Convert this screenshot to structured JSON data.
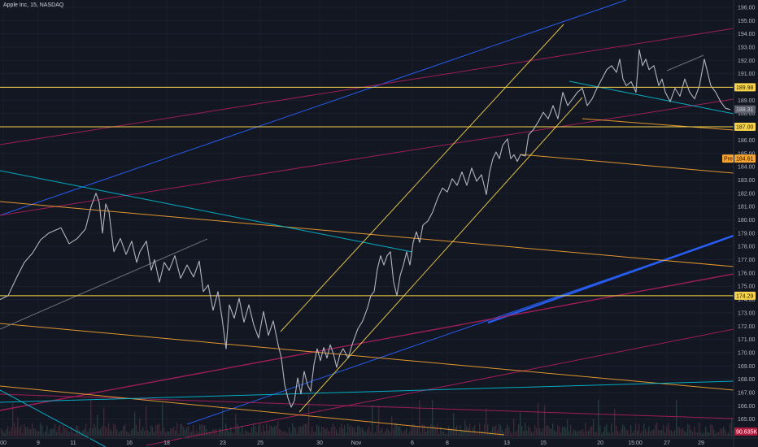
{
  "header": {
    "title": "Apple Inc, 15, NASDAQ"
  },
  "chart_data": {
    "type": "line",
    "title": "Apple Inc, 15, NASDAQ",
    "xlabel": "",
    "ylabel": "",
    "ylim": [
      163.7,
      196.3
    ],
    "y_ticks": [
      164,
      165,
      166,
      167,
      168,
      169,
      170,
      171,
      172,
      173,
      174,
      175,
      176,
      177,
      178,
      179,
      180,
      181,
      182,
      183,
      184,
      185,
      186,
      187,
      188,
      189,
      190,
      191,
      192,
      193,
      194,
      195,
      196
    ],
    "x_ticks": [
      "00",
      "9",
      "11",
      "16",
      "18",
      "23",
      "25",
      "30",
      "Nov",
      "6",
      "8",
      "13",
      "15",
      "20",
      "15:00",
      "27",
      "29"
    ],
    "price_tags": [
      {
        "label": "189.98",
        "value": 189.98,
        "color": "#f7d44c"
      },
      {
        "label": "187.00",
        "value": 187.0,
        "color": "#f7d44c"
      },
      {
        "label": "184.61",
        "value": 184.61,
        "color": "#f7a330",
        "prefix": "Pre"
      },
      {
        "label": "174.29",
        "value": 174.29,
        "color": "#f7d44c"
      },
      {
        "label": "188.31",
        "value": 188.31,
        "color": "#5d606b"
      }
    ],
    "volume_tag": "90.635K",
    "series": [
      {
        "values": [
          [
            0,
            174.0
          ],
          [
            10,
            174.3
          ],
          [
            20,
            175.6
          ],
          [
            30,
            176.8
          ],
          [
            40,
            177.5
          ],
          [
            50,
            178.5
          ],
          [
            60,
            179.0
          ],
          [
            75,
            179.4
          ],
          [
            85,
            178.2
          ],
          [
            95,
            178.6
          ],
          [
            105,
            179.3
          ],
          [
            112,
            181.0
          ],
          [
            118,
            182.0
          ],
          [
            122,
            181.3
          ],
          [
            126,
            179.0
          ],
          [
            130,
            181.2
          ],
          [
            134,
            180.6
          ],
          [
            140,
            177.6
          ],
          [
            148,
            178.6
          ],
          [
            155,
            177.4
          ],
          [
            162,
            178.4
          ],
          [
            168,
            176.8
          ],
          [
            172,
            177.6
          ],
          [
            180,
            178.4
          ],
          [
            186,
            176.2
          ],
          [
            190,
            177.0
          ],
          [
            196,
            175.3
          ],
          [
            202,
            176.8
          ],
          [
            208,
            176.2
          ],
          [
            215,
            177.3
          ],
          [
            222,
            175.6
          ],
          [
            230,
            176.6
          ],
          [
            238,
            175.7
          ],
          [
            245,
            176.9
          ],
          [
            250,
            174.6
          ],
          [
            256,
            175.1
          ],
          [
            262,
            173.2
          ],
          [
            268,
            174.6
          ],
          [
            273,
            172.6
          ],
          [
            278,
            170.3
          ],
          [
            282,
            173.6
          ],
          [
            288,
            172.6
          ],
          [
            294,
            174.1
          ],
          [
            300,
            172.3
          ],
          [
            306,
            173.6
          ],
          [
            312,
            172.1
          ],
          [
            318,
            171.1
          ],
          [
            324,
            173.1
          ],
          [
            330,
            171.3
          ],
          [
            336,
            172.4
          ],
          [
            342,
            170.6
          ],
          [
            346,
            169.6
          ],
          [
            350,
            167.6
          ],
          [
            354,
            166.6
          ],
          [
            358,
            165.9
          ],
          [
            362,
            166.4
          ],
          [
            366,
            168.1
          ],
          [
            370,
            166.9
          ],
          [
            374,
            168.6
          ],
          [
            378,
            167.6
          ],
          [
            382,
            167.1
          ],
          [
            386,
            169.1
          ],
          [
            390,
            170.3
          ],
          [
            394,
            169.4
          ],
          [
            398,
            170.4
          ],
          [
            402,
            169.6
          ],
          [
            406,
            170.6
          ],
          [
            410,
            169.9
          ],
          [
            414,
            168.9
          ],
          [
            418,
            169.9
          ],
          [
            422,
            170.3
          ],
          [
            428,
            169.6
          ],
          [
            434,
            170.8
          ],
          [
            440,
            171.8
          ],
          [
            446,
            172.4
          ],
          [
            452,
            173.4
          ],
          [
            456,
            174.3
          ],
          [
            460,
            174.6
          ],
          [
            464,
            176.3
          ],
          [
            468,
            177.3
          ],
          [
            472,
            176.6
          ],
          [
            476,
            177.3
          ],
          [
            480,
            177.6
          ],
          [
            484,
            175.3
          ],
          [
            488,
            174.3
          ],
          [
            492,
            175.8
          ],
          [
            496,
            176.6
          ],
          [
            500,
            177.6
          ],
          [
            504,
            176.6
          ],
          [
            508,
            178.3
          ],
          [
            512,
            179.1
          ],
          [
            516,
            178.3
          ],
          [
            520,
            179.6
          ],
          [
            526,
            179.9
          ],
          [
            532,
            180.6
          ],
          [
            538,
            181.6
          ],
          [
            544,
            182.4
          ],
          [
            550,
            182.1
          ],
          [
            556,
            183.1
          ],
          [
            562,
            182.6
          ],
          [
            568,
            183.6
          ],
          [
            574,
            182.6
          ],
          [
            580,
            183.9
          ],
          [
            586,
            182.9
          ],
          [
            592,
            183.4
          ],
          [
            598,
            181.9
          ],
          [
            602,
            183.6
          ],
          [
            606,
            184.6
          ],
          [
            610,
            185.1
          ],
          [
            614,
            184.6
          ],
          [
            618,
            185.6
          ],
          [
            624,
            186.1
          ],
          [
            628,
            184.6
          ],
          [
            632,
            184.9
          ],
          [
            636,
            184.4
          ],
          [
            640,
            184.9
          ],
          [
            646,
            184.8
          ],
          [
            650,
            186.4
          ],
          [
            656,
            186.8
          ],
          [
            662,
            187.4
          ],
          [
            668,
            188.1
          ],
          [
            674,
            187.6
          ],
          [
            680,
            188.6
          ],
          [
            686,
            187.6
          ],
          [
            692,
            189.6
          ],
          [
            698,
            188.6
          ],
          [
            704,
            189.1
          ],
          [
            710,
            189.6
          ],
          [
            716,
            189.9
          ],
          [
            722,
            188.6
          ],
          [
            728,
            189.1
          ],
          [
            734,
            189.9
          ],
          [
            740,
            190.6
          ],
          [
            746,
            191.3
          ],
          [
            752,
            191.6
          ],
          [
            758,
            191.1
          ],
          [
            762,
            192.1
          ],
          [
            766,
            190.6
          ],
          [
            770,
            190.1
          ],
          [
            776,
            190.4
          ],
          [
            782,
            189.6
          ],
          [
            786,
            192.8
          ],
          [
            790,
            191.6
          ],
          [
            794,
            192.1
          ],
          [
            798,
            191.3
          ],
          [
            804,
            191.6
          ],
          [
            810,
            190.1
          ],
          [
            814,
            190.6
          ],
          [
            818,
            189.6
          ],
          [
            824,
            188.9
          ],
          [
            830,
            189.9
          ],
          [
            836,
            189.3
          ],
          [
            842,
            190.6
          ],
          [
            848,
            189.6
          ],
          [
            854,
            189.1
          ],
          [
            860,
            190.1
          ],
          [
            866,
            192.1
          ],
          [
            870,
            191.1
          ],
          [
            874,
            190.1
          ],
          [
            880,
            189.6
          ],
          [
            886,
            188.9
          ],
          [
            892,
            188.4
          ],
          [
            898,
            188.3
          ]
        ]
      }
    ]
  }
}
